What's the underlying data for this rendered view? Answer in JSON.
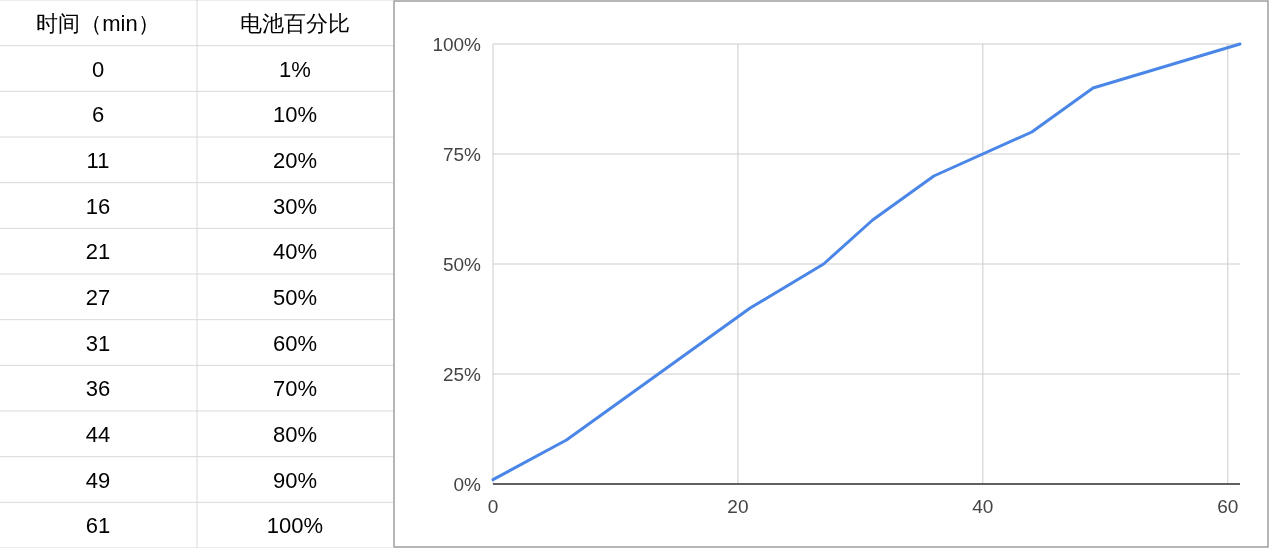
{
  "chart_data": [
    {
      "type": "other",
      "annotations": [
        "时间（min）",
        "电池百分比",
        "0",
        "1%",
        "6",
        "10%",
        "11",
        "20%",
        "16",
        "30%",
        "21",
        "40%",
        "27",
        "50%",
        "31",
        "60%",
        "36",
        "70%",
        "44",
        "80%",
        "49",
        "90%",
        "61",
        "100%"
      ]
    },
    {
      "type": "line",
      "x": [
        0,
        6,
        11,
        16,
        21,
        27,
        31,
        36,
        44,
        49,
        61
      ],
      "values": [
        1,
        10,
        20,
        30,
        40,
        50,
        60,
        70,
        80,
        90,
        100
      ],
      "color": "#4a86e8",
      "xlim": [
        0,
        61
      ],
      "ylim": [
        0,
        100
      ],
      "xticks": [
        0,
        20,
        40,
        60
      ],
      "yticks": [
        {
          "value": 0,
          "label": "0%"
        },
        {
          "value": 25,
          "label": "25%"
        },
        {
          "value": 50,
          "label": "50%"
        },
        {
          "value": 75,
          "label": "75%"
        },
        {
          "value": 100,
          "label": "100%"
        }
      ],
      "grid": true,
      "marker": "none",
      "line_style": "solid"
    }
  ]
}
